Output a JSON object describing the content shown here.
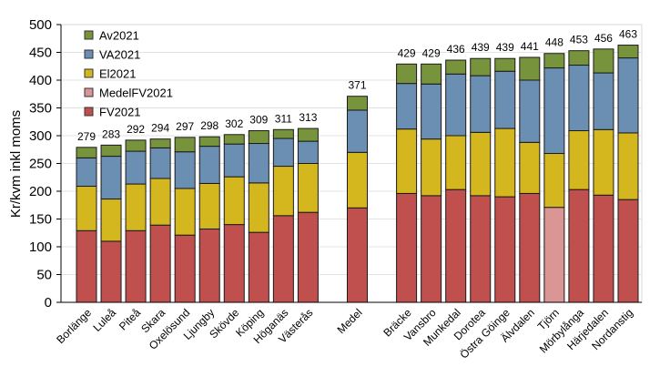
{
  "chart_data": {
    "type": "bar",
    "stacked": true,
    "title": "",
    "xlabel": "",
    "ylabel": "Kr/kvm inkl moms",
    "ylim": [
      0,
      500
    ],
    "yticks": [
      0,
      50,
      100,
      150,
      200,
      250,
      300,
      350,
      400,
      450,
      500
    ],
    "grid": true,
    "legend_position": "top-left",
    "legend": [
      "Av2021",
      "VA2021",
      "El2021",
      "MedelFV2021",
      "FV2021"
    ],
    "colors": {
      "FV2021": "#c0504d",
      "MedelFV2021": "#d99694",
      "El2021": "#d4b61f",
      "VA2021": "#6a8fb3",
      "Av2021": "#77933c"
    },
    "categories": [
      "Borlänge",
      "Luleå",
      "Piteå",
      "Skara",
      "Oxelösund",
      "Ljungby",
      "Skövde",
      "Köping",
      "Höganäs",
      "Västerås",
      "",
      "Medel",
      "",
      "Bräcke",
      "Vansbro",
      "Munkedal",
      "Dorotea",
      "Östra Göinge",
      "Älvdalen",
      "Tjörn",
      "Mörbylånga",
      "Härjedalen",
      "Nordanstig"
    ],
    "series": [
      {
        "name": "FV2021",
        "values": [
          129,
          110,
          129,
          139,
          121,
          132,
          140,
          126,
          156,
          162,
          null,
          170,
          null,
          196,
          192,
          203,
          192,
          190,
          196,
          null,
          203,
          193,
          185
        ]
      },
      {
        "name": "MedelFV2021",
        "values": [
          null,
          null,
          null,
          null,
          null,
          null,
          null,
          null,
          null,
          null,
          null,
          null,
          null,
          null,
          null,
          null,
          null,
          null,
          null,
          171,
          null,
          null,
          null
        ]
      },
      {
        "name": "El2021",
        "values": [
          80,
          76,
          84,
          84,
          84,
          82,
          86,
          89,
          89,
          88,
          null,
          100,
          null,
          116,
          102,
          97,
          114,
          123,
          92,
          97,
          106,
          118,
          120
        ]
      },
      {
        "name": "VA2021",
        "values": [
          51,
          77,
          59,
          55,
          66,
          67,
          59,
          71,
          50,
          40,
          null,
          76,
          null,
          82,
          99,
          111,
          102,
          103,
          112,
          154,
          118,
          102,
          135
        ]
      },
      {
        "name": "Av2021",
        "values": [
          19,
          20,
          20,
          16,
          26,
          17,
          17,
          23,
          16,
          23,
          null,
          25,
          null,
          35,
          36,
          25,
          31,
          23,
          41,
          26,
          26,
          43,
          23
        ]
      }
    ],
    "totals": [
      "279",
      "283",
      "292",
      "294",
      "297",
      "298",
      "302",
      "309",
      "311",
      "313",
      "",
      "371",
      "",
      "429",
      "429",
      "436",
      "439",
      "439",
      "441",
      "448",
      "453",
      "456",
      "463"
    ]
  }
}
